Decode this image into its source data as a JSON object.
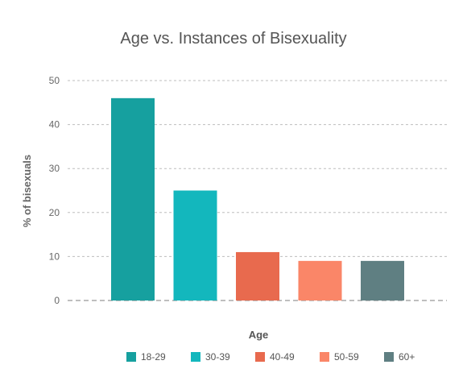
{
  "chart_data": {
    "type": "bar",
    "title": "Age vs. Instances of Bisexuality",
    "xlabel": "Age",
    "ylabel": "% of bisexuals",
    "categories": [
      "18-29",
      "30-39",
      "40-49",
      "50-59",
      "60+"
    ],
    "values": [
      46,
      25,
      11,
      9,
      9
    ],
    "colors": [
      "#16a09f",
      "#13b7bd",
      "#e86a4e",
      "#fa8668",
      "#5f7f82"
    ],
    "ylim": [
      0,
      50
    ],
    "yticks": [
      0,
      10,
      20,
      30,
      40,
      50
    ],
    "grid": true,
    "legend_position": "bottom-center",
    "legend": [
      "18-29",
      "30-39",
      "40-49",
      "50-59",
      "60+"
    ]
  }
}
